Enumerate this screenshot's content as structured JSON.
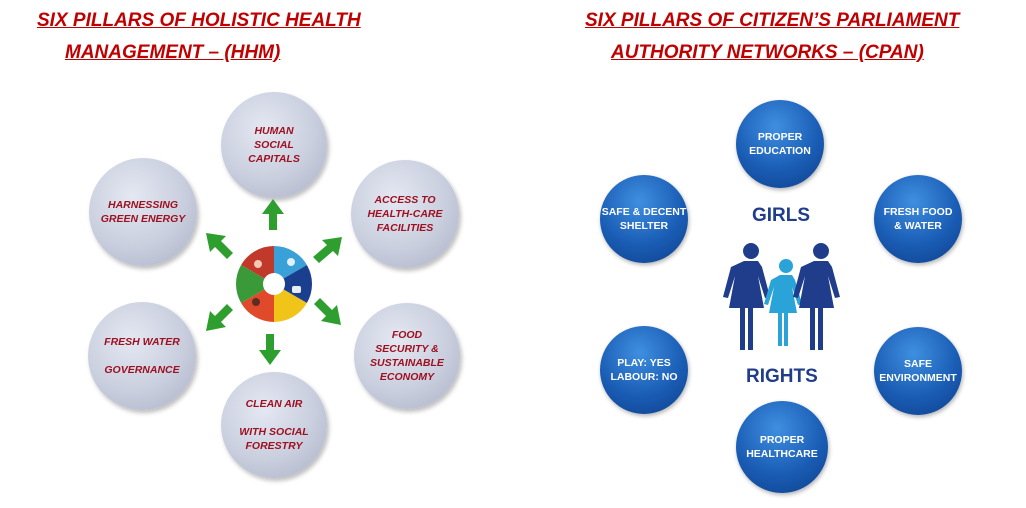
{
  "left": {
    "title_line1": "SIX PILLARS OF HOLISTIC HEALTH",
    "title_line2": "MANAGEMENT – (HHM)",
    "pillars": [
      {
        "label": "HUMAN\nSOCIAL\nCAPITALS"
      },
      {
        "label": "ACCESS TO\nHEALTH-CARE\nFACILITIES"
      },
      {
        "label": "FOOD\nSECURITY &\nSUSTAINABLE\nECONOMY"
      },
      {
        "label": "CLEAN AIR\n\nWITH SOCIAL\nFORESTRY"
      },
      {
        "label": "FRESH WATER\n\nGOVERNANCE"
      },
      {
        "label": "HARNESSING\nGREEN ENERGY"
      }
    ]
  },
  "right": {
    "title_line1": "SIX PILLARS OF CITIZEN’S PARLIAMENT",
    "title_line2": "AUTHORITY NETWORKS – (CPAN)",
    "center_top": "GIRLS",
    "center_bottom": "RIGHTS",
    "pillars": [
      {
        "label": "PROPER\nEDUCATION"
      },
      {
        "label": "FRESH FOOD\n& WATER"
      },
      {
        "label": "SAFE\nENVIRONMENT"
      },
      {
        "label": "PROPER\nHEALTHCARE"
      },
      {
        "label": "PLAY: YES\nLABOUR: NO"
      },
      {
        "label": "SAFE & DECENT\nSHELTER"
      }
    ]
  },
  "colors": {
    "title": "#c00000",
    "grey_text": "#9e1020",
    "arrow": "#2e9e2e",
    "blue": "#1a5db5",
    "figure_dark": "#1f3d8a",
    "figure_light": "#29a3d8"
  }
}
